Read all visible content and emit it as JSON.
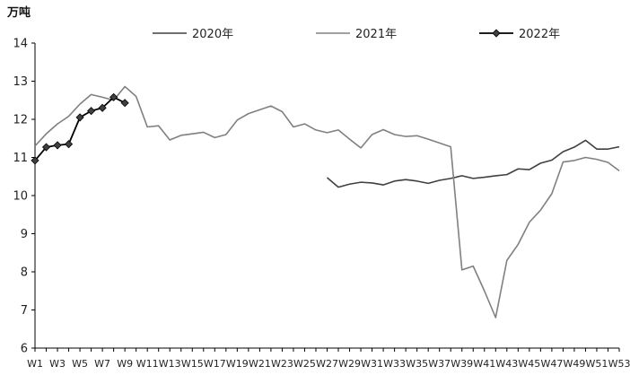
{
  "chart_data": {
    "type": "line",
    "y_unit": "万吨",
    "ylim": [
      6,
      14
    ],
    "y_ticks": [
      6,
      7,
      8,
      9,
      10,
      11,
      12,
      13,
      14
    ],
    "x_count": 53,
    "x_tick_labels": [
      "W1",
      "W3",
      "W5",
      "W7",
      "W9",
      "W11",
      "W13",
      "W15",
      "W17",
      "W19",
      "W21",
      "W23",
      "W25",
      "W27",
      "W29",
      "W31",
      "W33",
      "W35",
      "W37",
      "W39",
      "W41",
      "W43",
      "W45",
      "W47",
      "W49",
      "W51",
      "W53"
    ],
    "grid": false,
    "legend_position": "top",
    "series": [
      {
        "name": "2020年",
        "color": "#404040",
        "marker": "none",
        "values": [
          null,
          null,
          null,
          null,
          null,
          null,
          null,
          null,
          null,
          null,
          null,
          null,
          null,
          null,
          null,
          null,
          null,
          null,
          null,
          null,
          null,
          null,
          null,
          null,
          null,
          null,
          10.47,
          10.22,
          10.3,
          10.35,
          10.33,
          10.28,
          10.38,
          10.42,
          10.38,
          10.32,
          10.4,
          10.45,
          10.52,
          10.45,
          10.48,
          10.52,
          10.55,
          10.7,
          10.68,
          10.85,
          10.93,
          11.15,
          11.27,
          11.45,
          11.22,
          11.22,
          11.28
        ]
      },
      {
        "name": "2021年",
        "color": "#808080",
        "marker": "none",
        "values": [
          11.3,
          11.62,
          11.88,
          12.08,
          12.4,
          12.65,
          12.58,
          12.5,
          12.86,
          12.6,
          11.8,
          11.83,
          11.46,
          11.58,
          11.62,
          11.66,
          11.52,
          11.6,
          11.98,
          12.15,
          12.25,
          12.35,
          12.2,
          11.8,
          11.88,
          11.72,
          11.65,
          11.72,
          11.48,
          11.25,
          11.6,
          11.73,
          11.6,
          11.55,
          11.57,
          11.48,
          11.38,
          11.28,
          8.05,
          8.15,
          7.5,
          6.8,
          8.3,
          8.72,
          9.3,
          9.62,
          10.05,
          10.88,
          10.92,
          11.0,
          10.95,
          10.87,
          10.65
        ]
      },
      {
        "name": "2022年",
        "color": "#000000",
        "marker": "diamond",
        "values": [
          10.92,
          11.27,
          11.32,
          11.35,
          12.05,
          12.22,
          12.3,
          12.58,
          12.43
        ]
      }
    ]
  }
}
